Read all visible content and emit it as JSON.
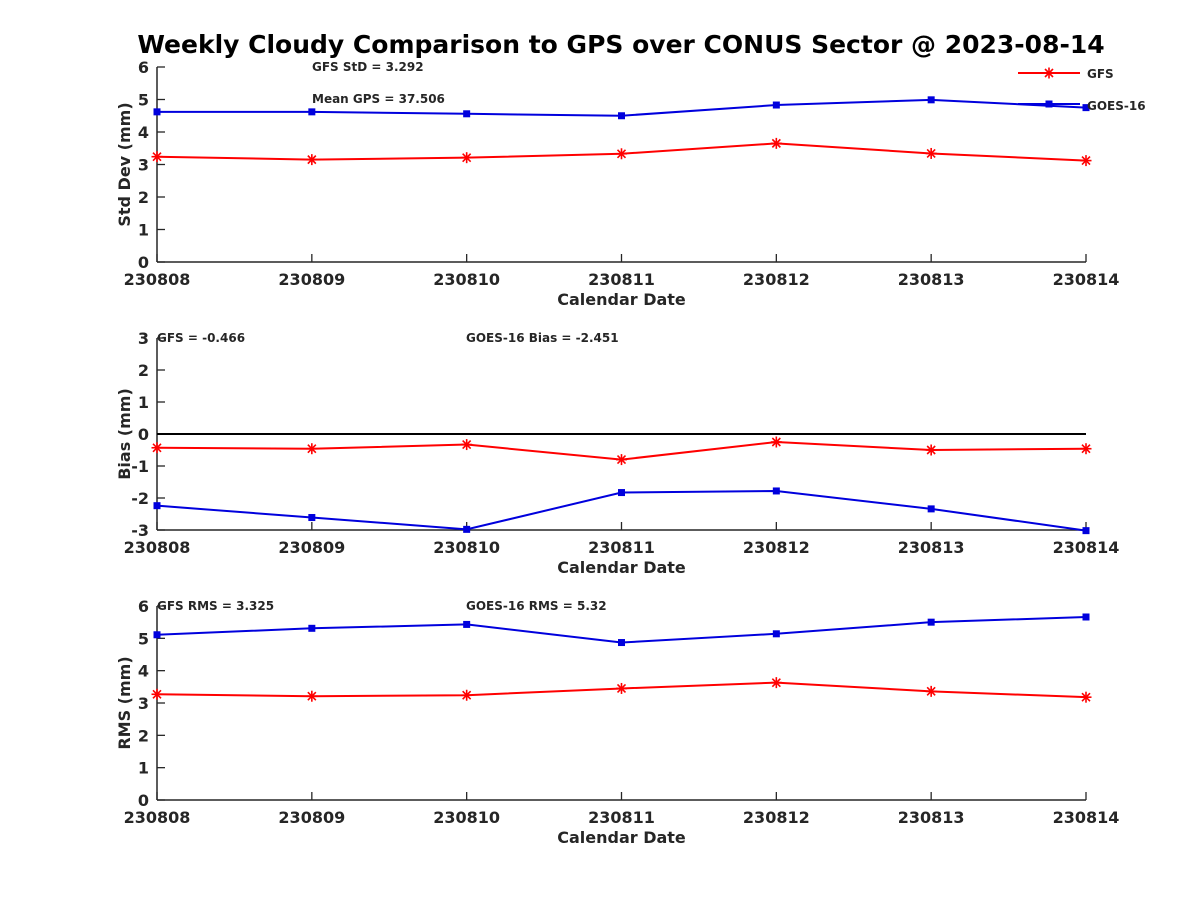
{
  "title": "Weekly Cloudy Comparison to GPS over CONUS Sector @ 2023-08-14",
  "legend": {
    "items": [
      "GFS",
      "GOES-16"
    ]
  },
  "colors": {
    "gfs": "#ff0000",
    "goes16": "#0000dd",
    "axis": "#262626",
    "zero_line": "#000000"
  },
  "chart_data": [
    {
      "type": "line",
      "title": "",
      "xlabel": "Calendar Date",
      "ylabel": "Std Dev (mm)",
      "categories": [
        "230808",
        "230809",
        "230810",
        "230811",
        "230812",
        "230813",
        "230814"
      ],
      "ylim": [
        0,
        6
      ],
      "yticks": [
        "0",
        "1",
        "2",
        "3",
        "4",
        "5",
        "6"
      ],
      "annotations": [
        "GFS StD = 3.292",
        "Mean GPS = 37.506"
      ],
      "series": [
        {
          "name": "GFS",
          "values": [
            3.24,
            3.15,
            3.21,
            3.33,
            3.65,
            3.34,
            3.12
          ]
        },
        {
          "name": "GOES-16",
          "values": [
            4.62,
            4.62,
            4.56,
            4.5,
            4.83,
            4.99,
            4.75
          ]
        }
      ]
    },
    {
      "type": "line",
      "title": "",
      "xlabel": "Calendar Date",
      "ylabel": "Bias (mm)",
      "categories": [
        "230808",
        "230809",
        "230810",
        "230811",
        "230812",
        "230813",
        "230814"
      ],
      "ylim": [
        -3,
        3
      ],
      "yticks": [
        "-3",
        "-2",
        "-1",
        "0",
        "1",
        "2",
        "3"
      ],
      "zero_line": true,
      "annotations": [
        "GFS = -0.466",
        "GOES-16 Bias  = -2.451"
      ],
      "series": [
        {
          "name": "GFS",
          "values": [
            -0.43,
            -0.46,
            -0.33,
            -0.8,
            -0.25,
            -0.5,
            -0.46
          ]
        },
        {
          "name": "GOES-16",
          "values": [
            -2.24,
            -2.61,
            -2.98,
            -1.83,
            -1.78,
            -2.34,
            -3.02
          ]
        }
      ]
    },
    {
      "type": "line",
      "title": "",
      "xlabel": "Calendar Date",
      "ylabel": "RMS (mm)",
      "categories": [
        "230808",
        "230809",
        "230810",
        "230811",
        "230812",
        "230813",
        "230814"
      ],
      "ylim": [
        0,
        6
      ],
      "yticks": [
        "0",
        "1",
        "2",
        "3",
        "4",
        "5",
        "6"
      ],
      "annotations": [
        "GFS RMS = 3.325",
        "GOES-16 RMS = 5.32"
      ],
      "series": [
        {
          "name": "GFS",
          "values": [
            3.27,
            3.21,
            3.24,
            3.45,
            3.63,
            3.36,
            3.18
          ]
        },
        {
          "name": "GOES-16",
          "values": [
            5.11,
            5.31,
            5.43,
            4.87,
            5.14,
            5.5,
            5.66
          ]
        }
      ]
    }
  ]
}
